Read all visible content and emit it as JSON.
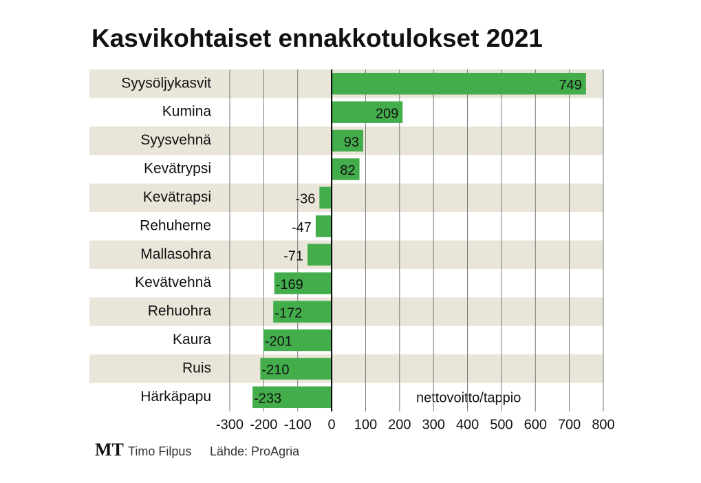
{
  "chart_data": {
    "type": "hbar",
    "title": "Kasvikohtaiset ennakkotulokset 2021",
    "categories": [
      "Syysöljykasvit",
      "Kumina",
      "Syysvehnä",
      "Kevätrypsi",
      "Kevätrapsi",
      "Rehuherne",
      "Mallasohra",
      "Kevätvehnä",
      "Rehuohra",
      "Kaura",
      "Ruis",
      "Härkäpapu"
    ],
    "values": [
      749,
      209,
      93,
      82,
      -36,
      -47,
      -71,
      -169,
      -172,
      -201,
      -210,
      -233
    ],
    "color": "#43ad4b",
    "xlim": [
      -300,
      800
    ],
    "xticks": [
      -300,
      -200,
      -100,
      0,
      100,
      200,
      300,
      400,
      500,
      600,
      700,
      800
    ],
    "grid": true,
    "annotation": "nettovoitto/tappio",
    "logo": "MT",
    "author": "Timo Filpus",
    "source": "Lähde: ProAgria"
  }
}
